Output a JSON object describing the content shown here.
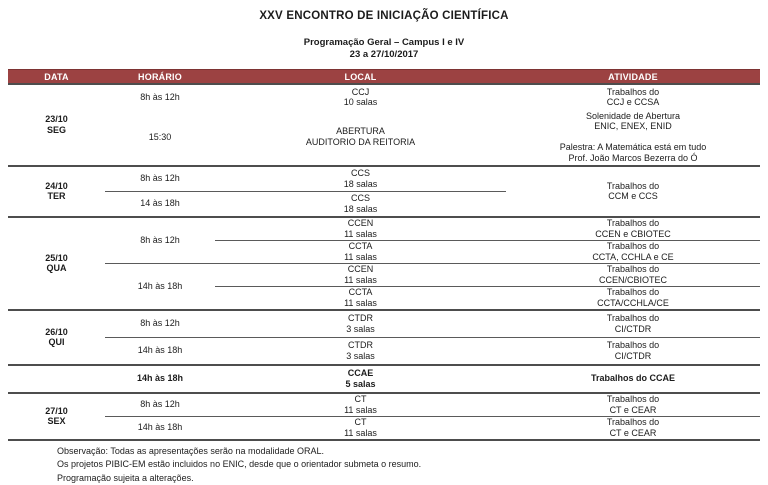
{
  "header": {
    "title": "XXV ENCONTRO DE INICIAÇÃO CIENTÍFICA",
    "subtitle": "Programação Geral – Campus I e IV",
    "date_range": "23 a 27/10/2017"
  },
  "table": {
    "header_bg": "#9c4242",
    "columns": [
      "DATA",
      "HORÁRIO",
      "LOCAL",
      "ATIVIDADE"
    ],
    "blocks": [
      {
        "date": "23/10",
        "day": "SEG",
        "bold": false,
        "slot_separator": false,
        "activity_scope": "slot",
        "slots": [
          {
            "time": "8h às 12h",
            "rows": [
              {
                "local": [
                  "CCJ",
                  "10 salas"
                ]
              }
            ],
            "activity": [
              "Trabalhos do",
              "CCJ e CCSA"
            ]
          },
          {
            "time": "15:30",
            "rows": [
              {
                "local": [
                  "ABERTURA",
                  "AUDITORIO DA REITORIA"
                ]
              }
            ],
            "activity": [
              "Solenidade de Abertura",
              "ENIC, ENEX, ENID",
              "",
              "Palestra: A Matemática está em tudo",
              "Prof. João Marcos Bezerra do Ó"
            ]
          }
        ]
      },
      {
        "date": "24/10",
        "day": "TER",
        "bold": false,
        "slot_separator": true,
        "activity_scope": "block",
        "activity": [
          "Trabalhos do",
          "CCM e CCS"
        ],
        "slots": [
          {
            "time": "8h às 12h",
            "rows": [
              {
                "local": [
                  "CCS",
                  "18 salas"
                ]
              }
            ]
          },
          {
            "time": "14 às 18h",
            "rows": [
              {
                "local": [
                  "CCS",
                  "18 salas"
                ]
              }
            ]
          }
        ]
      },
      {
        "date": "25/10",
        "day": "QUA",
        "bold": false,
        "slot_separator": true,
        "activity_scope": "row",
        "slots": [
          {
            "time": "8h às 12h",
            "rows": [
              {
                "local": [
                  "CCEN",
                  "11 salas"
                ],
                "activity": [
                  "Trabalhos do",
                  "CCEN e CBIOTEC"
                ]
              },
              {
                "local": [
                  "CCTA",
                  "11 salas"
                ],
                "activity": [
                  "Trabalhos do",
                  "CCTA, CCHLA e CE"
                ]
              }
            ]
          },
          {
            "time": "14h às 18h",
            "rows": [
              {
                "local": [
                  "CCEN",
                  "11 salas"
                ],
                "activity": [
                  "Trabalhos do",
                  "CCEN/CBIOTEC"
                ]
              },
              {
                "local": [
                  "CCTA",
                  "11 salas"
                ],
                "activity": [
                  "Trabalhos do",
                  "CCTA/CCHLA/CE"
                ]
              }
            ]
          }
        ]
      },
      {
        "date": "26/10",
        "day": "QUI",
        "bold": false,
        "slot_separator": true,
        "activity_scope": "row",
        "slots": [
          {
            "time": "8h às 12h",
            "rows": [
              {
                "local": [
                  "CTDR",
                  "3 salas"
                ],
                "activity": [
                  "Trabalhos do",
                  "CI/CTDR"
                ]
              }
            ]
          },
          {
            "time": "14h às 18h",
            "rows": [
              {
                "local": [
                  "CTDR",
                  "3 salas"
                ],
                "activity": [
                  "Trabalhos do",
                  "CI/CTDR"
                ]
              }
            ]
          }
        ]
      },
      {
        "date": "",
        "day": "",
        "bold": true,
        "slot_separator": true,
        "activity_scope": "row",
        "slots": [
          {
            "time": "14h às 18h",
            "rows": [
              {
                "local": [
                  "CCAE",
                  "5 salas"
                ],
                "activity": [
                  "Trabalhos do CCAE"
                ]
              }
            ]
          }
        ]
      },
      {
        "date": "27/10",
        "day": "SEX",
        "bold": false,
        "slot_separator": true,
        "activity_scope": "row",
        "slots": [
          {
            "time": "8h às 12h",
            "rows": [
              {
                "local": [
                  "CT",
                  "11 salas"
                ],
                "activity": [
                  "Trabalhos do",
                  "CT e CEAR"
                ]
              }
            ]
          },
          {
            "time": "14h às 18h",
            "rows": [
              {
                "local": [
                  "CT",
                  "11 salas"
                ],
                "activity": [
                  "Trabalhos do",
                  "CT e CEAR"
                ]
              }
            ]
          }
        ]
      }
    ]
  },
  "notes": [
    "Observação: Todas as apresentações serão na modalidade ORAL.",
    "Os projetos PIBIC-EM estão incluidos no ENIC, desde que o orientador submeta o resumo.",
    "Programação sujeita a alterações."
  ]
}
